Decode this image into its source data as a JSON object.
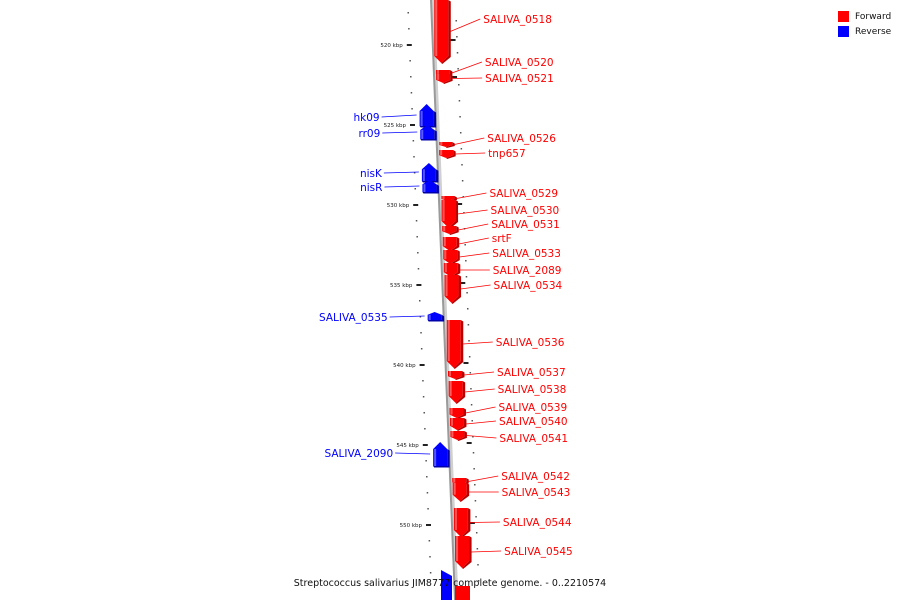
{
  "caption": "Streptococcus salivarius JIM8777 complete genome. - 0..2210574",
  "legend": [
    {
      "label": "Forward",
      "color": "#ff0000"
    },
    {
      "label": "Reverse",
      "color": "#0000ff"
    }
  ],
  "colors": {
    "forward": "#ff0000",
    "reverse": "#0000ff",
    "backbone": "#9a9a9a"
  },
  "scale": {
    "unit": "kbp",
    "labels": [
      "520 kbp",
      "525 kbp",
      "530 kbp",
      "535 kbp",
      "540 kbp",
      "545 kbp",
      "550 kbp"
    ]
  },
  "features": [
    {
      "name": "SALIVA_0518",
      "strand": "forward"
    },
    {
      "name": "SALIVA_0520",
      "strand": "forward"
    },
    {
      "name": "SALIVA_0521",
      "strand": "forward"
    },
    {
      "name": "hk09",
      "strand": "reverse"
    },
    {
      "name": "rr09",
      "strand": "reverse"
    },
    {
      "name": "SALIVA_0526",
      "strand": "forward"
    },
    {
      "name": "tnp657",
      "strand": "forward"
    },
    {
      "name": "nisK",
      "strand": "reverse"
    },
    {
      "name": "nisR",
      "strand": "reverse"
    },
    {
      "name": "SALIVA_0529",
      "strand": "forward"
    },
    {
      "name": "SALIVA_0530",
      "strand": "forward"
    },
    {
      "name": "SALIVA_0531",
      "strand": "forward"
    },
    {
      "name": "srtF",
      "strand": "forward"
    },
    {
      "name": "SALIVA_0533",
      "strand": "forward"
    },
    {
      "name": "SALIVA_2089",
      "strand": "forward"
    },
    {
      "name": "SALIVA_0534",
      "strand": "forward"
    },
    {
      "name": "SALIVA_0535",
      "strand": "reverse"
    },
    {
      "name": "SALIVA_0536",
      "strand": "forward"
    },
    {
      "name": "SALIVA_0537",
      "strand": "forward"
    },
    {
      "name": "SALIVA_0538",
      "strand": "forward"
    },
    {
      "name": "SALIVA_0539",
      "strand": "forward"
    },
    {
      "name": "SALIVA_0540",
      "strand": "forward"
    },
    {
      "name": "SALIVA_0541",
      "strand": "forward"
    },
    {
      "name": "SALIVA_2090",
      "strand": "reverse"
    },
    {
      "name": "SALIVA_0542",
      "strand": "forward"
    },
    {
      "name": "SALIVA_0543",
      "strand": "forward"
    },
    {
      "name": "SALIVA_0544",
      "strand": "forward"
    },
    {
      "name": "SALIVA_0545",
      "strand": "forward"
    }
  ]
}
